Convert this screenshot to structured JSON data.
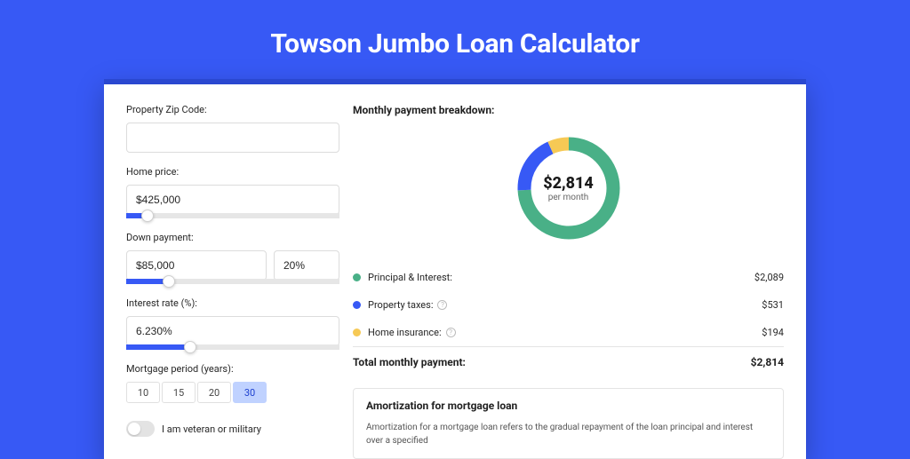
{
  "page_title": "Towson Jumbo Loan Calculator",
  "colors": {
    "page_bg": "#3759f5",
    "card_border_top": "#2a48d0",
    "accent": "#3759f5",
    "segment_active_bg": "#c0d2ff"
  },
  "form": {
    "zip_label": "Property Zip Code:",
    "zip_value": "",
    "home_price_label": "Home price:",
    "home_price_value": "$425,000",
    "home_price_slider_pct": 10,
    "down_payment_label": "Down payment:",
    "down_payment_value": "$85,000",
    "down_payment_pct": "20%",
    "down_payment_slider_pct": 20,
    "interest_label": "Interest rate (%):",
    "interest_value": "6.230%",
    "interest_slider_pct": 30,
    "term_label": "Mortgage period (years):",
    "term_options": [
      "10",
      "15",
      "20",
      "30"
    ],
    "term_active_index": 3,
    "veteran_label": "I am veteran or military",
    "veteran_on": false
  },
  "breakdown": {
    "title": "Monthly payment breakdown:",
    "center_amount": "$2,814",
    "center_sub": "per month",
    "donut": {
      "stroke_width": 15,
      "radius": 50,
      "slices": [
        {
          "label": "Principal & Interest:",
          "value": "$2,089",
          "pct": 74.2,
          "color": "#49b087",
          "has_info": false
        },
        {
          "label": "Property taxes:",
          "value": "$531",
          "pct": 18.9,
          "color": "#3759f5",
          "has_info": true
        },
        {
          "label": "Home insurance:",
          "value": "$194",
          "pct": 6.9,
          "color": "#f6c955",
          "has_info": true
        }
      ]
    },
    "total_label": "Total monthly payment:",
    "total_value": "$2,814"
  },
  "amortization": {
    "title": "Amortization for mortgage loan",
    "body": "Amortization for a mortgage loan refers to the gradual repayment of the loan principal and interest over a specified"
  }
}
